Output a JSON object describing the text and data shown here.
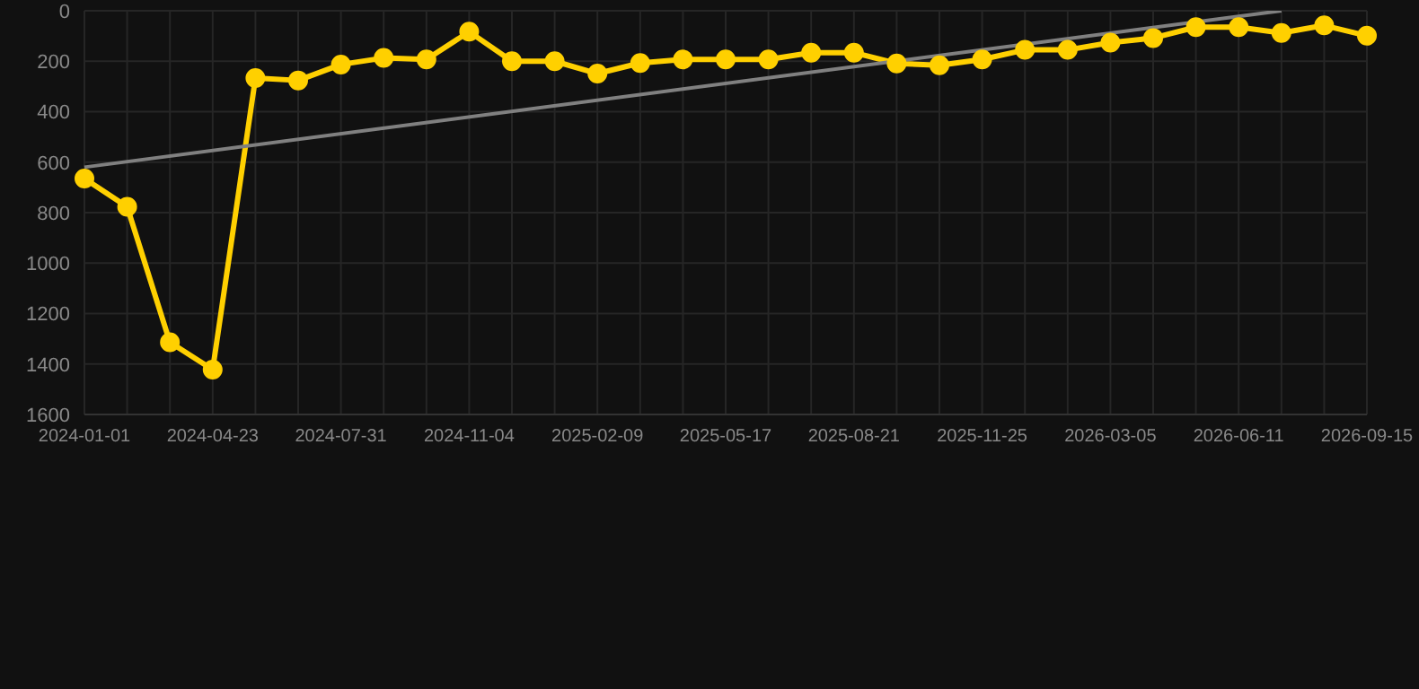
{
  "chart_data": {
    "type": "line",
    "categories": [
      "2024-01-01",
      null,
      null,
      "2024-04-23",
      null,
      null,
      "2024-07-31",
      null,
      null,
      "2024-11-04",
      null,
      null,
      "2025-02-09",
      null,
      null,
      "2025-05-17",
      null,
      null,
      "2025-08-21",
      null,
      null,
      "2025-11-25",
      null,
      null,
      "2026-03-05",
      null,
      null,
      "2026-06-11",
      null,
      null,
      "2026-09-15"
    ],
    "series": [
      {
        "color": "#ffd000",
        "marker": "circle",
        "values": [
          665,
          777,
          1314,
          1422,
          267,
          276,
          213,
          187,
          193,
          83,
          200,
          200,
          249,
          207,
          193,
          193,
          193,
          166,
          166,
          209,
          216,
          193,
          155,
          155,
          126,
          108,
          65,
          65,
          88,
          58,
          99
        ]
      },
      {
        "type": "line",
        "color": "#808080",
        "marker": "none",
        "values": [
          620,
          null,
          null,
          null,
          null,
          null,
          null,
          null,
          null,
          null,
          null,
          null,
          null,
          null,
          null,
          null,
          null,
          null,
          null,
          null,
          null,
          null,
          null,
          null,
          null,
          null,
          null,
          null,
          0,
          null,
          null
        ]
      }
    ],
    "ylim": [
      1600,
      0
    ],
    "yticks": [
      0,
      200,
      400,
      600,
      800,
      1000,
      1200,
      1400,
      1600
    ],
    "grid": true
  }
}
